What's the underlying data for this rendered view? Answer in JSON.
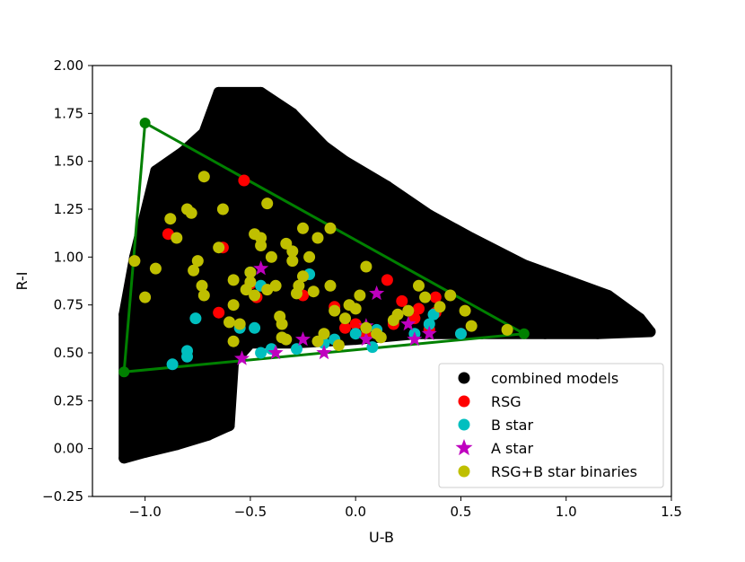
{
  "chart_data": {
    "type": "scatter",
    "title": "",
    "xlabel": "U-B",
    "ylabel": "R-I",
    "xlim": [
      -1.25,
      1.5
    ],
    "ylim": [
      -0.25,
      2.0
    ],
    "x_ticks": [
      -1.0,
      -0.5,
      0.0,
      0.5,
      1.0,
      1.5
    ],
    "x_tick_labels": [
      "−1.0",
      "−0.5",
      "0.0",
      "0.5",
      "1.0",
      "1.5"
    ],
    "y_ticks": [
      -0.25,
      0.0,
      0.25,
      0.5,
      0.75,
      1.0,
      1.25,
      1.5,
      1.75,
      2.0
    ],
    "y_tick_labels": [
      "−0.25",
      "0.00",
      "0.25",
      "0.50",
      "0.75",
      "1.00",
      "1.25",
      "1.50",
      "1.75",
      "2.00"
    ],
    "grid": false,
    "legend_position": "bottom-right",
    "series": [
      {
        "name": "combined models",
        "color": "#000000",
        "marker": "circle",
        "region_boundary": [
          [
            -1.1,
            -0.05
          ],
          [
            -1.0,
            -0.02
          ],
          [
            -0.85,
            0.02
          ],
          [
            -0.7,
            0.07
          ],
          [
            -0.6,
            0.12
          ],
          [
            -0.58,
            0.45
          ],
          [
            -0.5,
            0.55
          ],
          [
            -0.3,
            0.55
          ],
          [
            0.0,
            0.57
          ],
          [
            0.3,
            0.6
          ],
          [
            0.6,
            0.6
          ],
          [
            0.9,
            0.6
          ],
          [
            1.15,
            0.6
          ],
          [
            1.4,
            0.61
          ],
          [
            1.35,
            0.68
          ],
          [
            1.2,
            0.8
          ],
          [
            1.0,
            0.88
          ],
          [
            0.8,
            0.96
          ],
          [
            0.55,
            1.1
          ],
          [
            0.35,
            1.22
          ],
          [
            0.15,
            1.37
          ],
          [
            -0.05,
            1.5
          ],
          [
            -0.15,
            1.58
          ],
          [
            -0.3,
            1.75
          ],
          [
            -0.45,
            1.86
          ],
          [
            -0.65,
            1.86
          ],
          [
            -0.72,
            1.65
          ],
          [
            -0.82,
            1.55
          ],
          [
            -0.95,
            1.45
          ],
          [
            -1.05,
            1.0
          ],
          [
            -1.1,
            0.7
          ]
        ]
      },
      {
        "name": "RSG",
        "color": "#ff0000",
        "marker": "circle",
        "points": [
          [
            -0.53,
            1.4
          ],
          [
            -0.89,
            1.12
          ],
          [
            -0.63,
            1.05
          ],
          [
            -0.5,
            0.86
          ],
          [
            -0.65,
            0.71
          ],
          [
            -0.47,
            0.79
          ],
          [
            -0.25,
            0.8
          ],
          [
            -0.1,
            0.74
          ],
          [
            0.0,
            0.65
          ],
          [
            0.15,
            0.88
          ],
          [
            0.22,
            0.77
          ],
          [
            0.3,
            0.73
          ],
          [
            0.38,
            0.79
          ],
          [
            0.28,
            0.68
          ],
          [
            0.18,
            0.65
          ],
          [
            0.35,
            0.62
          ],
          [
            0.38,
            0.71
          ],
          [
            0.5,
            0.6
          ],
          [
            0.05,
            0.59
          ],
          [
            -0.05,
            0.63
          ]
        ]
      },
      {
        "name": "B star",
        "color": "#00bfbf",
        "marker": "circle",
        "points": [
          [
            -0.87,
            0.44
          ],
          [
            -0.8,
            0.48
          ],
          [
            -0.8,
            0.51
          ],
          [
            -0.76,
            0.68
          ],
          [
            -0.55,
            0.63
          ],
          [
            -0.5,
            0.92
          ],
          [
            -0.45,
            0.85
          ],
          [
            -0.48,
            0.63
          ],
          [
            -0.4,
            0.52
          ],
          [
            -0.45,
            0.5
          ],
          [
            -0.22,
            0.91
          ],
          [
            -0.28,
            0.52
          ],
          [
            -0.15,
            0.55
          ],
          [
            -0.1,
            0.57
          ],
          [
            0.0,
            0.6
          ],
          [
            0.08,
            0.53
          ],
          [
            0.1,
            0.62
          ],
          [
            0.28,
            0.6
          ],
          [
            0.35,
            0.65
          ],
          [
            0.37,
            0.7
          ],
          [
            0.5,
            0.6
          ]
        ]
      },
      {
        "name": "A star",
        "color": "#bf00bf",
        "marker": "star",
        "points": [
          [
            -0.54,
            0.47
          ],
          [
            -0.45,
            0.94
          ],
          [
            -0.38,
            0.5
          ],
          [
            -0.25,
            0.57
          ],
          [
            -0.15,
            0.5
          ],
          [
            0.05,
            0.57
          ],
          [
            0.05,
            0.64
          ],
          [
            0.1,
            0.81
          ],
          [
            0.25,
            0.65
          ],
          [
            0.28,
            0.57
          ],
          [
            0.35,
            0.6
          ]
        ]
      },
      {
        "name": "RSG+B star binaries",
        "color": "#bfbf00",
        "marker": "circle",
        "points": [
          [
            -1.0,
            0.79
          ],
          [
            -1.05,
            0.98
          ],
          [
            -0.95,
            0.94
          ],
          [
            -0.88,
            1.2
          ],
          [
            -0.85,
            1.1
          ],
          [
            -0.8,
            1.25
          ],
          [
            -0.78,
            1.23
          ],
          [
            -0.72,
            1.42
          ],
          [
            -0.77,
            0.93
          ],
          [
            -0.73,
            0.85
          ],
          [
            -0.72,
            0.8
          ],
          [
            -0.75,
            0.98
          ],
          [
            -0.63,
            1.25
          ],
          [
            -0.65,
            1.05
          ],
          [
            -0.58,
            0.88
          ],
          [
            -0.58,
            0.75
          ],
          [
            -0.6,
            0.66
          ],
          [
            -0.58,
            0.56
          ],
          [
            -0.55,
            0.65
          ],
          [
            -0.52,
            0.83
          ],
          [
            -0.5,
            0.87
          ],
          [
            -0.48,
            0.8
          ],
          [
            -0.5,
            0.92
          ],
          [
            -0.45,
            1.1
          ],
          [
            -0.48,
            1.12
          ],
          [
            -0.45,
            1.06
          ],
          [
            -0.42,
            0.83
          ],
          [
            -0.42,
            1.28
          ],
          [
            -0.4,
            1.0
          ],
          [
            -0.38,
            0.85
          ],
          [
            -0.36,
            0.69
          ],
          [
            -0.35,
            0.65
          ],
          [
            -0.35,
            0.58
          ],
          [
            -0.33,
            0.57
          ],
          [
            -0.33,
            1.07
          ],
          [
            -0.3,
            0.98
          ],
          [
            -0.3,
            1.03
          ],
          [
            -0.28,
            0.81
          ],
          [
            -0.27,
            0.85
          ],
          [
            -0.25,
            1.15
          ],
          [
            -0.25,
            0.9
          ],
          [
            -0.22,
            1.0
          ],
          [
            -0.2,
            0.82
          ],
          [
            -0.18,
            1.1
          ],
          [
            -0.18,
            0.56
          ],
          [
            -0.15,
            0.6
          ],
          [
            -0.12,
            1.15
          ],
          [
            -0.12,
            0.85
          ],
          [
            -0.1,
            0.72
          ],
          [
            -0.08,
            0.54
          ],
          [
            -0.05,
            0.68
          ],
          [
            -0.03,
            0.75
          ],
          [
            0.0,
            0.73
          ],
          [
            0.02,
            0.8
          ],
          [
            0.05,
            0.95
          ],
          [
            0.05,
            0.63
          ],
          [
            0.1,
            0.6
          ],
          [
            0.12,
            0.58
          ],
          [
            0.18,
            0.67
          ],
          [
            0.2,
            0.7
          ],
          [
            0.25,
            0.72
          ],
          [
            0.3,
            0.85
          ],
          [
            0.33,
            0.79
          ],
          [
            0.4,
            0.74
          ],
          [
            0.45,
            0.8
          ],
          [
            0.52,
            0.72
          ],
          [
            0.55,
            0.64
          ],
          [
            0.72,
            0.62
          ]
        ]
      }
    ],
    "triangle": {
      "color": "#008000",
      "vertices": [
        [
          -1.0,
          1.7
        ],
        [
          -1.1,
          0.4
        ],
        [
          0.8,
          0.6
        ]
      ]
    }
  }
}
